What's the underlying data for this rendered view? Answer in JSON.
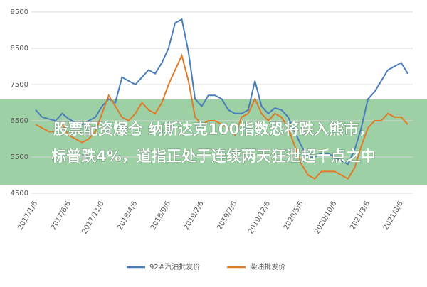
{
  "chart_data": {
    "type": "line",
    "categories": [
      "2017/1/6",
      null,
      null,
      null,
      null,
      "2017/6/6",
      null,
      null,
      null,
      null,
      "2017/11/6",
      null,
      null,
      null,
      null,
      "2018/4/6",
      null,
      null,
      null,
      null,
      "2018/9/6",
      null,
      null,
      null,
      null,
      "2019/2/6",
      null,
      null,
      null,
      null,
      "2019/7/6",
      null,
      null,
      null,
      null,
      "2019/12/6",
      null,
      null,
      null,
      null,
      "2020/5/6",
      null,
      null,
      null,
      null,
      "2020/10/6",
      null,
      null,
      null,
      null,
      "2021/3/6",
      null,
      null,
      null,
      null,
      "2021/8/6",
      null
    ],
    "series": [
      {
        "name": "92#汽油批发价",
        "color": "#4a7ebb",
        "values": [
          6800,
          6600,
          6550,
          6500,
          6700,
          6550,
          6450,
          6400,
          6500,
          6600,
          6900,
          7100,
          7000,
          7700,
          7600,
          7500,
          7700,
          7900,
          7800,
          8100,
          8500,
          9200,
          9300,
          8400,
          7100,
          6900,
          7200,
          7200,
          7100,
          6800,
          6700,
          6700,
          6800,
          7600,
          6900,
          6700,
          6850,
          6800,
          6600,
          6200,
          5800,
          5500,
          5500,
          5600,
          5600,
          5500,
          5400,
          5300,
          5700,
          6300,
          7100,
          7300,
          7600,
          7900,
          8000,
          8100,
          7800
        ]
      },
      {
        "name": "柴油批发价",
        "color": "#e07b2a",
        "values": [
          6400,
          6300,
          6200,
          6200,
          6400,
          6100,
          6000,
          5900,
          6000,
          6200,
          6700,
          7200,
          6900,
          6600,
          6500,
          6700,
          7000,
          6800,
          6700,
          7000,
          7500,
          7900,
          8300,
          7600,
          6600,
          6400,
          6500,
          6500,
          6400,
          6300,
          6100,
          6600,
          6700,
          7100,
          6700,
          6500,
          6700,
          6600,
          6300,
          5800,
          5300,
          5000,
          4900,
          5100,
          5100,
          5100,
          5000,
          4900,
          5200,
          5800,
          6300,
          6500,
          6500,
          6700,
          6600,
          6600,
          6400
        ]
      }
    ],
    "ylim": [
      4500,
      9500
    ],
    "yticks": [
      4500,
      5500,
      6500,
      7500,
      8500,
      9500
    ],
    "grid": true
  },
  "overlay": {
    "lines": [
      "股票配资爆仓 纳斯达克100指数恐将跌入熊市，",
      "标普跌4%，道指正处于连续两天狂泄超千点之中"
    ]
  }
}
